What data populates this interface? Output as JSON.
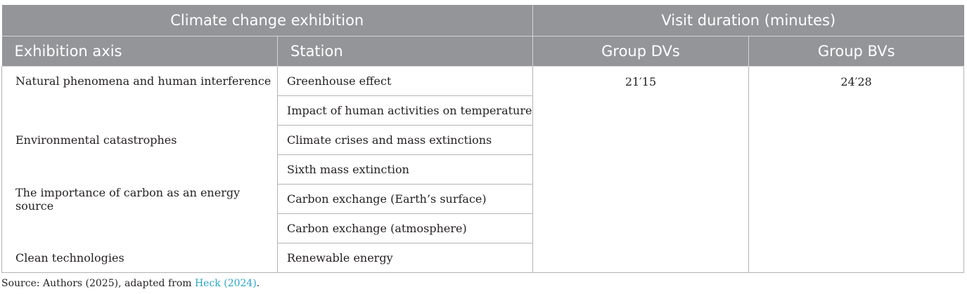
{
  "table": {
    "header_group_left": "Climate change exhibition",
    "header_group_right": "Visit duration (minutes)",
    "col_axis": "Exhibition axis",
    "col_station": "Station",
    "col_dvs": "Group DVs",
    "col_bvs": "Group BVs",
    "duration_dvs": "21′15",
    "duration_bvs": "24′28",
    "rows": [
      {
        "axis": "Natural phenomena and human interference",
        "station": "Greenhouse effect"
      },
      {
        "axis": "",
        "station": "Impact of human activities on temperature"
      },
      {
        "axis": "Environmental catastrophes",
        "station": "Climate crises and mass extinctions"
      },
      {
        "axis": "",
        "station": "Sixth mass extinction"
      },
      {
        "axis": "The importance of carbon as an energy source",
        "station": "Carbon exchange (Earth’s surface)"
      },
      {
        "axis": "",
        "station": "Carbon exchange (atmosphere)"
      },
      {
        "axis": "Clean technologies",
        "station": "Renewable energy"
      }
    ]
  },
  "source": {
    "prefix": "Source: Authors (2025), adapted from ",
    "link": "Heck (2024)",
    "suffix": "."
  },
  "colors": {
    "header_bg": "#939598",
    "header_text": "#ffffff",
    "link": "#2aa6c6"
  }
}
